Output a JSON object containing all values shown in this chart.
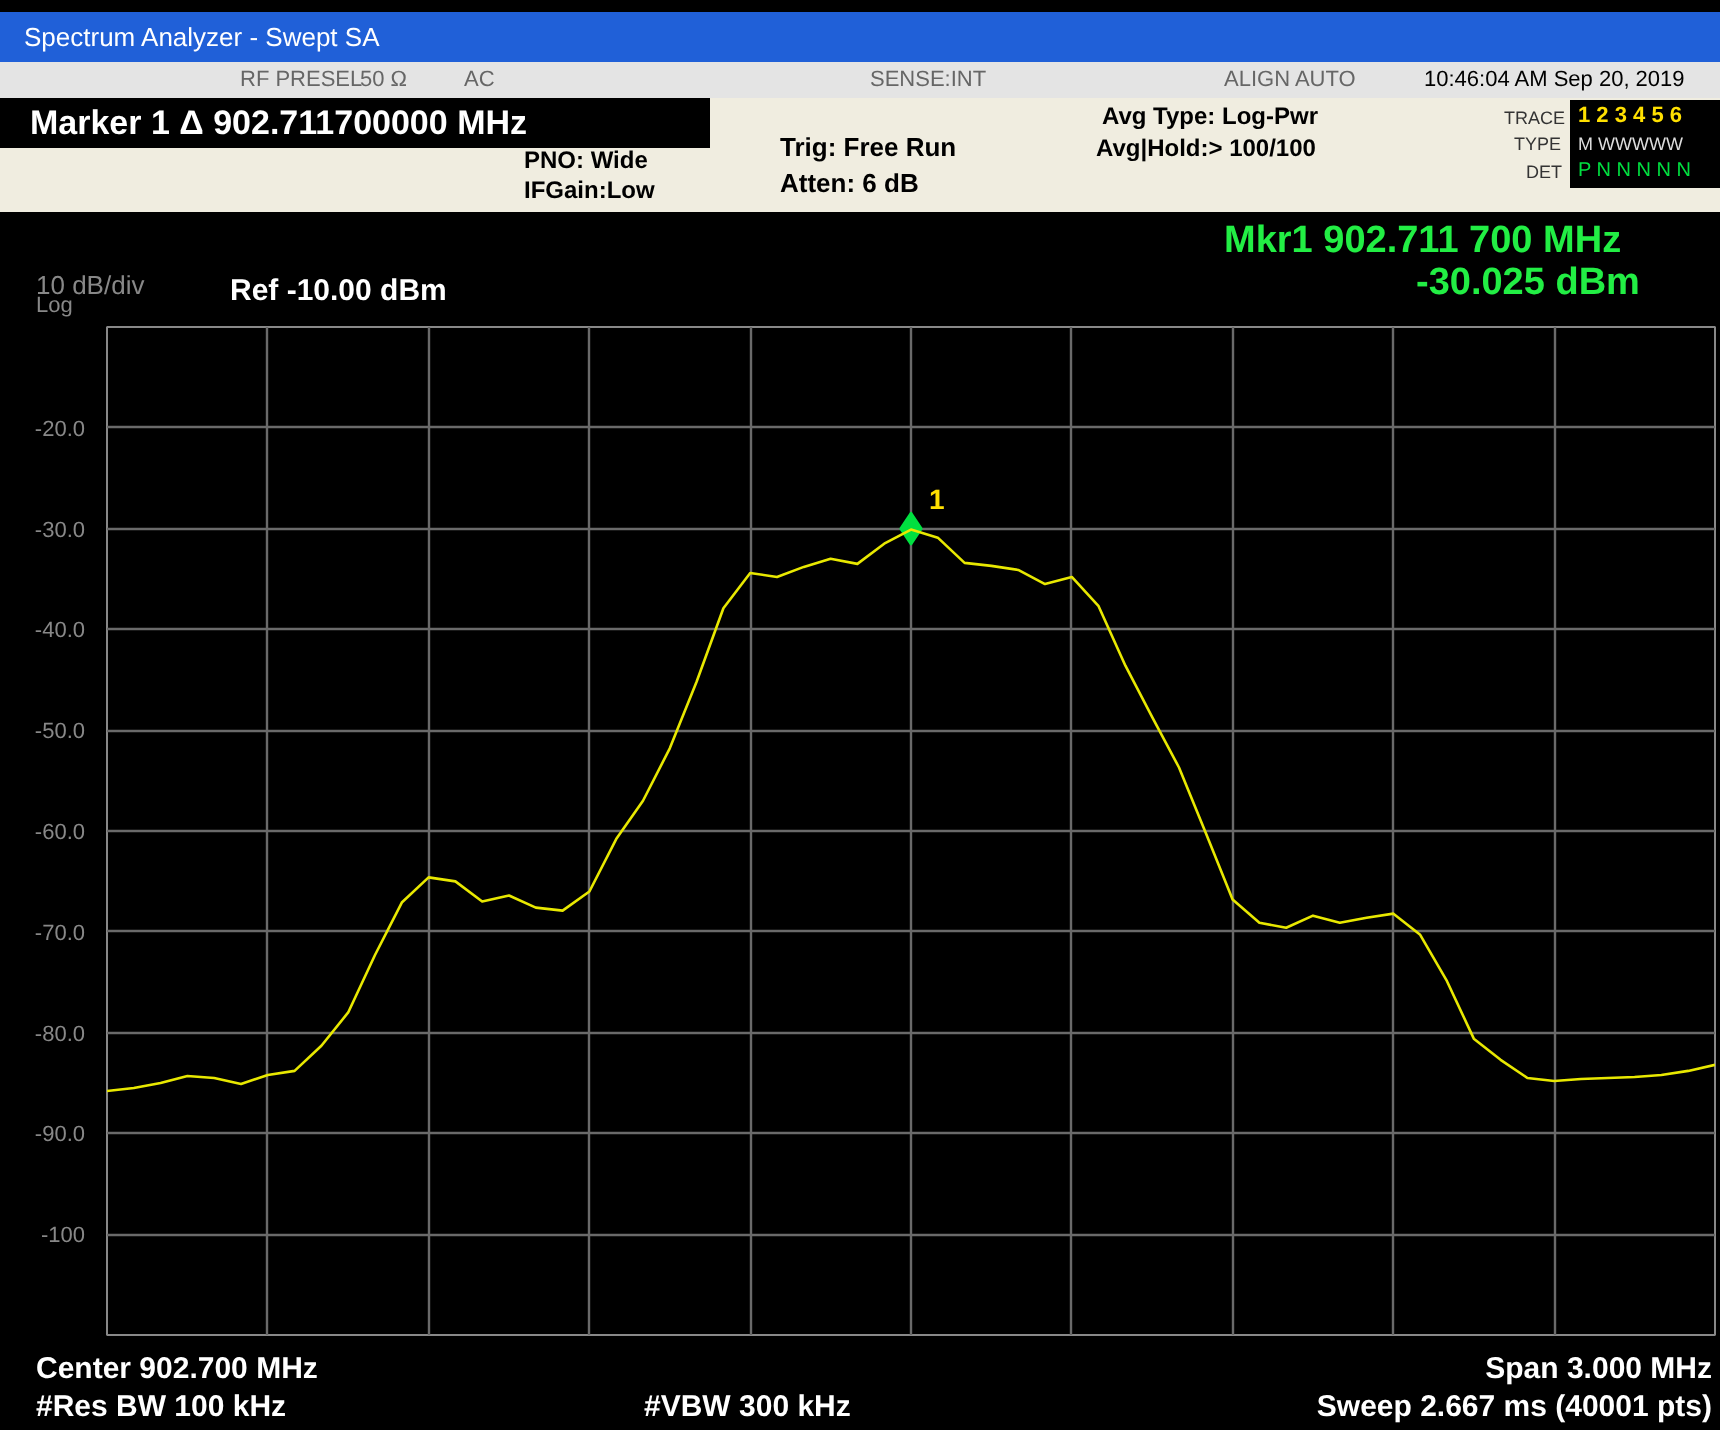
{
  "chart_data": {
    "type": "line",
    "title": "Spectrum Analyzer - Swept SA",
    "categories": [
      null,
      null,
      null,
      null,
      null,
      null,
      null,
      null,
      null,
      null,
      null,
      null,
      null,
      null,
      null,
      null,
      null,
      null,
      null,
      null,
      null,
      null,
      null,
      null,
      null,
      null,
      null,
      null,
      null,
      null,
      null,
      null,
      null,
      null,
      null,
      null,
      null,
      null,
      null,
      null,
      null,
      null,
      null,
      null,
      null,
      null,
      null,
      null,
      null,
      null,
      null,
      null,
      null,
      null,
      null,
      null,
      null,
      null,
      null,
      null,
      null
    ],
    "ylim": [
      -110,
      -10
    ],
    "yticks": [
      {
        "value": -10,
        "label": null
      },
      {
        "value": -20,
        "label": "-20.0"
      },
      {
        "value": -30,
        "label": "-30.0"
      },
      {
        "value": -40,
        "label": "-40.0"
      },
      {
        "value": -50,
        "label": "-50.0"
      },
      {
        "value": -60,
        "label": "-60.0"
      },
      {
        "value": -70,
        "label": "-70.0"
      },
      {
        "value": -80,
        "label": "-80.0"
      },
      {
        "value": -90,
        "label": "-90.0"
      },
      {
        "value": -100,
        "label": "-100"
      },
      {
        "value": -110,
        "label": null
      }
    ],
    "grid": true,
    "tick_labels": "y",
    "series": [
      {
        "color": "#e8e800",
        "values": [
          -85.8,
          -85.5,
          -85.0,
          -84.3,
          -84.5,
          -85.1,
          -84.2,
          -83.8,
          -81.3,
          -78.0,
          -72.3,
          -67.1,
          -64.6,
          -65.0,
          -67.0,
          -66.4,
          -67.6,
          -67.9,
          -66.0,
          -60.8,
          -57.0,
          -51.8,
          -45.2,
          -37.9,
          -34.4,
          -34.8,
          -33.8,
          -33.0,
          -33.5,
          -31.5,
          -30.1,
          -30.9,
          -33.4,
          -33.7,
          -34.1,
          -35.5,
          -34.8,
          -37.7,
          -43.6,
          -48.7,
          -53.7,
          -60.2,
          -66.8,
          -69.1,
          -69.6,
          -68.4,
          -69.1,
          -68.6,
          -68.2,
          -70.3,
          -74.9,
          -80.6,
          -82.7,
          -84.5,
          -84.8,
          -84.6,
          -84.5,
          -84.4,
          -84.2,
          -83.8,
          -83.2
        ]
      },
      {
        "type": "scatter",
        "name": "1",
        "color": "#00e040",
        "marker": "diamond",
        "values": [
          null,
          null,
          null,
          null,
          null,
          null,
          null,
          null,
          null,
          null,
          null,
          null,
          null,
          null,
          null,
          null,
          null,
          null,
          null,
          null,
          null,
          null,
          null,
          null,
          null,
          null,
          null,
          null,
          null,
          null,
          -30.0,
          null,
          null,
          null,
          null,
          null,
          null,
          null,
          null,
          null,
          null,
          null,
          null,
          null,
          null,
          null,
          null,
          null,
          null,
          null,
          null,
          null,
          null,
          null,
          null,
          null,
          null,
          null,
          null,
          null,
          null
        ]
      }
    ],
    "annotations": [
      "RF PRESEL",
      "50 Ω",
      "AC",
      "SENSE:INT",
      "ALIGN AUTO",
      "10:46:04 AM Sep 20, 2019",
      "Marker 1 Δ 902.711700000 MHz",
      "PNO: Wide",
      "IFGain:Low",
      "Trig: Free Run",
      "Atten: 6 dB",
      "Avg Type: Log-Pwr",
      "Avg|Hold:> 100/100",
      "TRACE",
      "1 2 3 4 5 6",
      "TYPE",
      "M WWWWW",
      "DET",
      "P N N N N N",
      "Mkr1 902.711 700 MHz",
      "-30.025 dBm",
      "10 dB/div",
      "Ref -10.00 dBm",
      "Log",
      "Center 902.700 MHz",
      "Span 3.000 MHz",
      "#Res BW 100 kHz",
      "#VBW 300 kHz",
      "Sweep  2.667 ms (40001 pts)"
    ]
  }
}
